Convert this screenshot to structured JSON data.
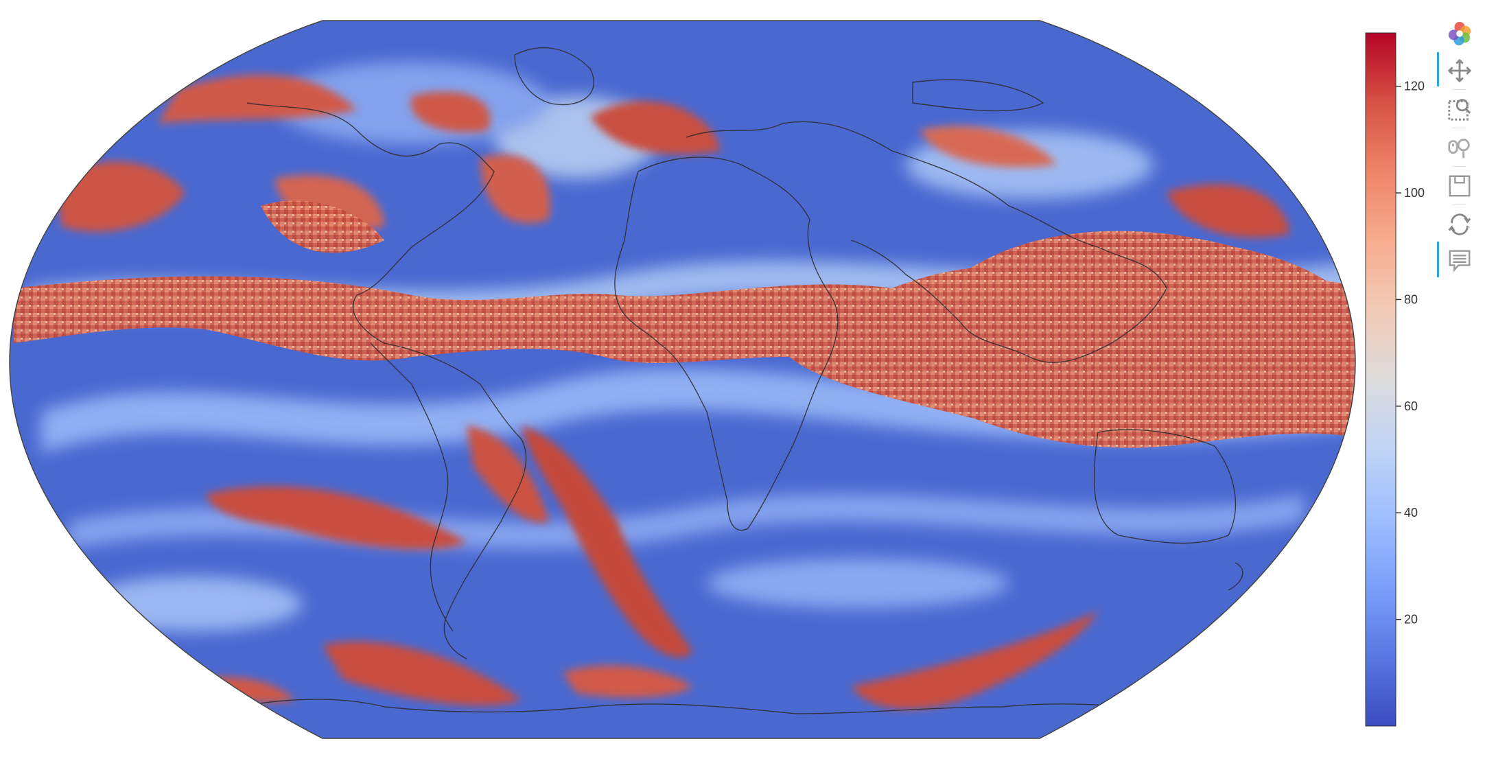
{
  "colorbar": {
    "colormap": [
      "#3b4cc0",
      "#5977e3",
      "#7b9ff9",
      "#9ebeff",
      "#c0d4f5",
      "#dddcdc",
      "#f2cbb7",
      "#f7ac8e",
      "#ee8468",
      "#d65244",
      "#b40426"
    ],
    "range": [
      0,
      130
    ],
    "ticks": [
      20,
      40,
      60,
      80,
      100,
      120
    ]
  },
  "map": {
    "projection": "Robinson",
    "coastlines": true,
    "background": "#ffffff"
  },
  "toolbar": {
    "items": [
      {
        "name": "bokeh-logo-icon",
        "active": false
      },
      {
        "name": "pan-tool-icon",
        "active": true
      },
      {
        "name": "box-zoom-tool-icon",
        "active": false
      },
      {
        "name": "wheel-zoom-tool-icon",
        "active": false
      },
      {
        "name": "save-tool-icon",
        "active": false
      },
      {
        "name": "reset-tool-icon",
        "active": false
      },
      {
        "name": "hover-tool-icon",
        "active": true
      }
    ]
  }
}
